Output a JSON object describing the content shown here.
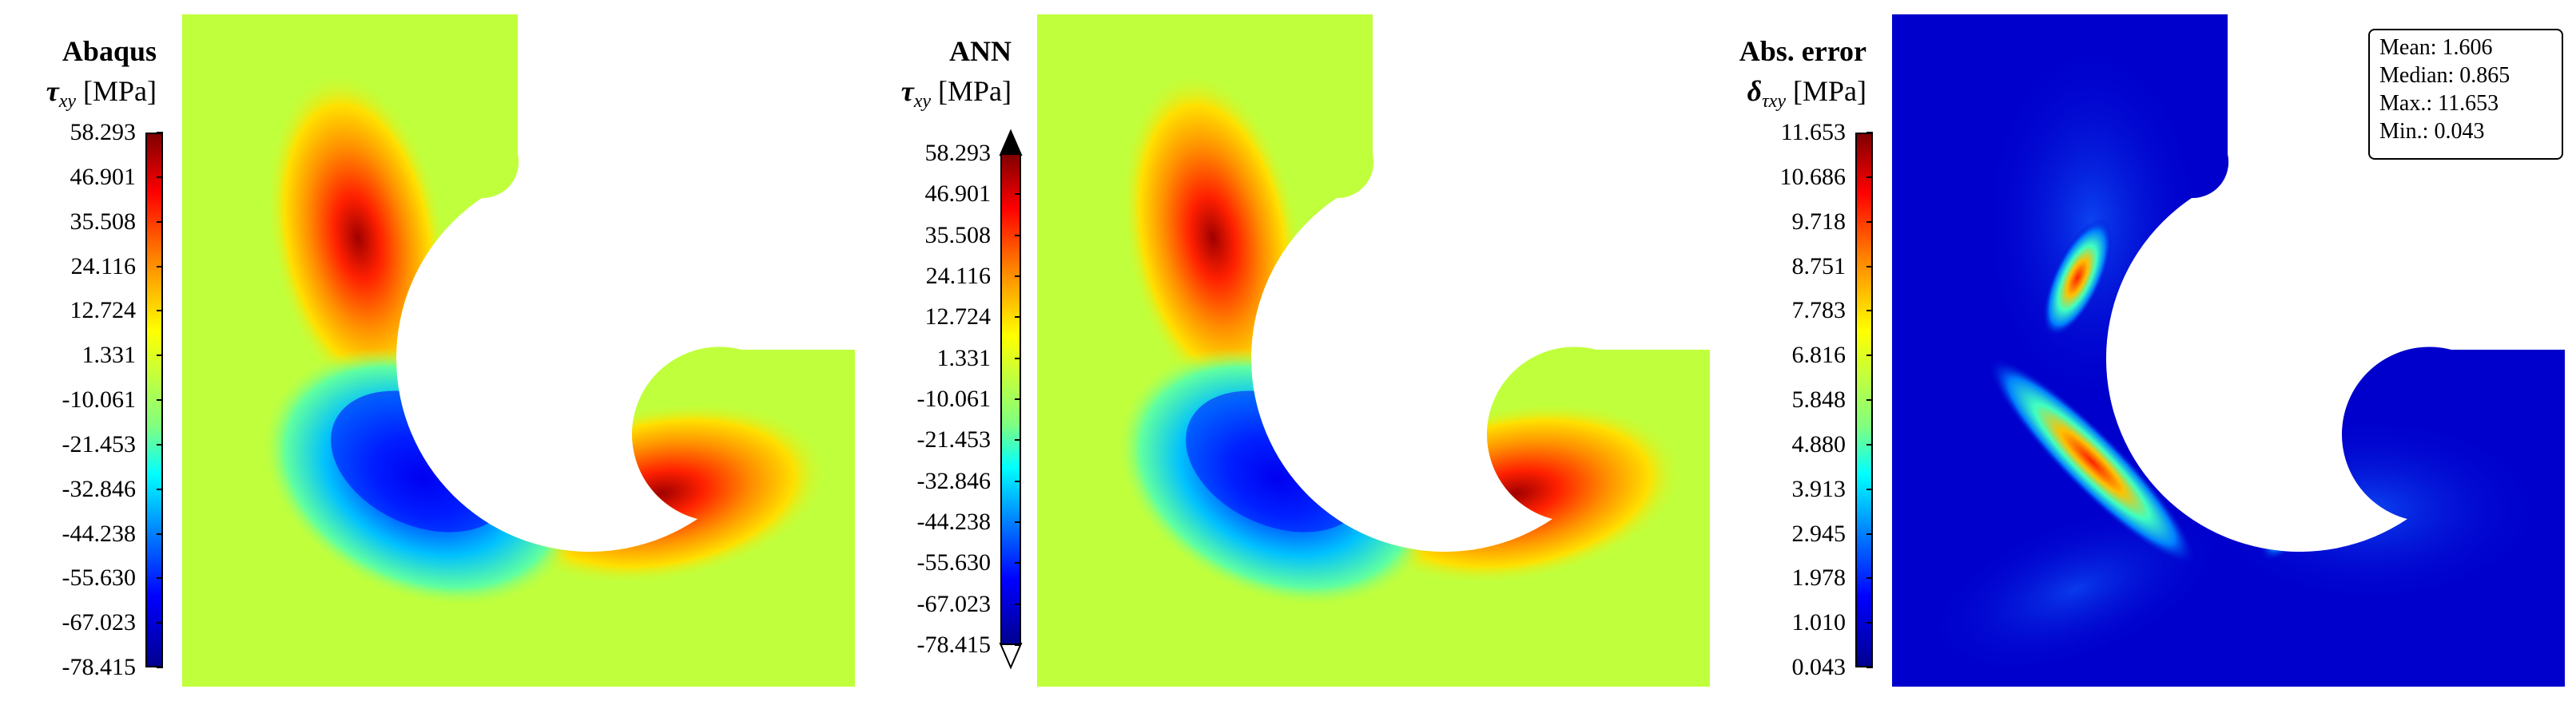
{
  "panels": [
    {
      "id": "abaqus",
      "title": "Abaqus",
      "symbol": "τ",
      "symbol_sub": "xy",
      "unit": "[MPa]",
      "colorbar_ticks": [
        "58.293",
        "46.901",
        "35.508",
        "24.116",
        "12.724",
        "1.331",
        "-10.061",
        "-21.453",
        "-32.846",
        "-44.238",
        "-55.630",
        "-67.023",
        "-78.415"
      ],
      "colorbar_extend": false
    },
    {
      "id": "ann",
      "title": "ANN",
      "symbol": "τ",
      "symbol_sub": "xy",
      "unit": "[MPa]",
      "colorbar_ticks": [
        "58.293",
        "46.901",
        "35.508",
        "24.116",
        "12.724",
        "1.331",
        "-10.061",
        "-21.453",
        "-32.846",
        "-44.238",
        "-55.630",
        "-67.023",
        "-78.415"
      ],
      "colorbar_extend": true
    },
    {
      "id": "error",
      "title": "Abs. error",
      "symbol": "δ",
      "symbol_sub": "τxy",
      "unit": "[MPa]",
      "colorbar_ticks": [
        "11.653",
        "10.686",
        "9.718",
        "8.751",
        "7.783",
        "6.816",
        "5.848",
        "4.880",
        "3.913",
        "2.945",
        "1.978",
        "1.010",
        "0.043"
      ],
      "colorbar_extend": false
    }
  ],
  "stats": {
    "mean": "Mean: 1.606",
    "median": "Median: 0.865",
    "max": "Max.: 11.653",
    "min": "Min.: 0.043"
  },
  "colors": {
    "jet_dark_red": "#800000",
    "jet_red": "#ff0000",
    "jet_orange": "#ff8000",
    "jet_yellow": "#ffff00",
    "jet_yellow_green": "#c0ff3c",
    "jet_cyan": "#00ffff",
    "jet_blue": "#0000ff",
    "jet_dark_blue": "#00008f"
  },
  "chart_data": [
    {
      "type": "heatmap",
      "title": "Abaqus",
      "quantity": "τxy [MPa]",
      "colorbar_range": [
        -78.415,
        58.293
      ],
      "colormap": "jet"
    },
    {
      "type": "heatmap",
      "title": "ANN",
      "quantity": "τxy [MPa]",
      "colorbar_range": [
        -78.415,
        58.293
      ],
      "colormap": "jet"
    },
    {
      "type": "heatmap",
      "title": "Abs. error",
      "quantity": "δτxy [MPa]",
      "colorbar_range": [
        0.043,
        11.653
      ],
      "colormap": "jet",
      "statistics": {
        "mean": 1.606,
        "median": 0.865,
        "max": 11.653,
        "min": 0.043
      }
    }
  ]
}
